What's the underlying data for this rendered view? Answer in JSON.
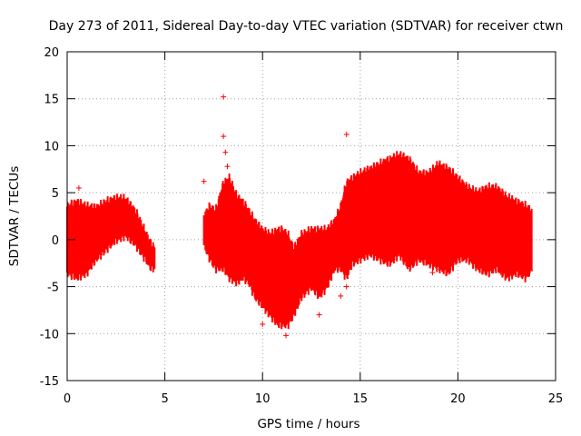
{
  "chart_data": {
    "type": "scatter",
    "title": "Day 273 of 2011, Sidereal Day-to-day VTEC variation (SDTVAR) for receiver ctwn",
    "xlabel": "GPS time / hours",
    "ylabel": "SDTVAR / TECUs",
    "xlim": [
      0,
      25
    ],
    "ylim": [
      -15,
      20
    ],
    "xticks": [
      0,
      5,
      10,
      15,
      20,
      25
    ],
    "yticks": [
      -15,
      -10,
      -5,
      0,
      5,
      10,
      15,
      20
    ],
    "grid": true,
    "marker": "plus",
    "series": [
      {
        "name": "SDTVAR",
        "color": "#ff0000",
        "envelope": {
          "x": [
            0.0,
            0.5,
            1.0,
            1.5,
            2.0,
            2.5,
            3.0,
            3.5,
            4.0,
            4.3,
            4.5,
            7.0,
            7.3,
            7.6,
            8.0,
            8.3,
            8.7,
            9.0,
            9.3,
            9.6,
            10.0,
            10.4,
            10.8,
            11.0,
            11.3,
            11.6,
            12.0,
            12.5,
            12.9,
            13.3,
            13.7,
            14.0,
            14.3,
            14.6,
            15.0,
            15.5,
            16.0,
            16.5,
            17.0,
            17.5,
            18.0,
            18.5,
            19.0,
            19.5,
            20.0,
            20.5,
            21.0,
            21.5,
            22.0,
            22.5,
            23.0,
            23.5,
            23.8
          ],
          "upper": [
            3.5,
            4.0,
            3.5,
            3.4,
            4.0,
            4.4,
            4.3,
            3.0,
            0.8,
            -0.5,
            -1.0,
            2.5,
            3.5,
            3.0,
            6.0,
            6.5,
            4.5,
            4.0,
            3.0,
            2.0,
            1.0,
            0.5,
            1.0,
            1.0,
            0.5,
            -1.0,
            0.5,
            1.0,
            1.0,
            1.0,
            2.0,
            3.5,
            6.0,
            6.5,
            7.0,
            7.5,
            8.0,
            8.5,
            9.0,
            8.5,
            7.0,
            7.0,
            8.0,
            7.5,
            6.5,
            5.5,
            5.0,
            5.5,
            5.5,
            4.5,
            4.0,
            3.5,
            3.0
          ],
          "lower": [
            -3.5,
            -4.0,
            -3.5,
            -2.0,
            -1.0,
            0.0,
            0.5,
            -0.5,
            -2.0,
            -3.0,
            -3.0,
            -0.5,
            -2.0,
            -3.0,
            -3.0,
            -4.0,
            -4.5,
            -4.0,
            -4.5,
            -6.0,
            -7.0,
            -8.0,
            -9.0,
            -9.0,
            -9.0,
            -8.0,
            -6.0,
            -5.0,
            -6.0,
            -5.0,
            -3.0,
            -3.0,
            -4.0,
            -2.5,
            -2.0,
            -1.5,
            -2.0,
            -2.5,
            -1.5,
            -3.0,
            -2.0,
            -2.5,
            -3.0,
            -3.5,
            -2.0,
            -2.0,
            -3.0,
            -3.5,
            -3.0,
            -4.0,
            -3.5,
            -4.0,
            -3.0
          ]
        },
        "outliers": [
          [
            0.6,
            5.5
          ],
          [
            7.0,
            6.2
          ],
          [
            8.0,
            11.0
          ],
          [
            8.0,
            15.2
          ],
          [
            8.1,
            9.3
          ],
          [
            8.2,
            7.8
          ],
          [
            10.0,
            -9.0
          ],
          [
            11.2,
            -10.2
          ],
          [
            12.9,
            -8.0
          ],
          [
            14.3,
            11.2
          ],
          [
            14.3,
            -5.0
          ],
          [
            14.0,
            -6.0
          ],
          [
            16.3,
            8.3
          ],
          [
            18.7,
            2.0
          ],
          [
            18.7,
            -3.5
          ],
          [
            22.2,
            -3.5
          ],
          [
            23.7,
            -3.3
          ]
        ]
      }
    ]
  }
}
